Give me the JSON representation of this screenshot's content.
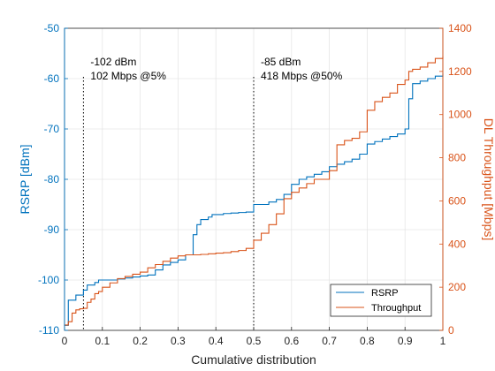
{
  "chart_data": {
    "type": "line",
    "xlabel": "Cumulative distribution",
    "ylabel_left": "RSRP [dBm]",
    "ylabel_right": "DL Throughput [Mbps]",
    "xlim": [
      0,
      1
    ],
    "ylim_left": [
      -110,
      -50
    ],
    "ylim_right": [
      0,
      1400
    ],
    "xticks": [
      "0",
      "0.1",
      "0.2",
      "0.3",
      "0.4",
      "0.5",
      "0.6",
      "0.7",
      "0.8",
      "0.9",
      "1"
    ],
    "yticks_left": [
      "-110",
      "-100",
      "-90",
      "-80",
      "-70",
      "-60",
      "-50"
    ],
    "yticks_right": [
      "0",
      "200",
      "400",
      "600",
      "800",
      "1000",
      "1200",
      "1400"
    ],
    "grid": true,
    "legend_position": "bottom-right",
    "colors": {
      "rsrp": "#0072BD",
      "throughput": "#D95319",
      "left_axis": "#0072BD",
      "right_axis": "#D95319"
    },
    "series": [
      {
        "name": "RSRP",
        "axis": "left",
        "x": [
          0.0,
          0.01,
          0.02,
          0.03,
          0.04,
          0.05,
          0.06,
          0.07,
          0.08,
          0.09,
          0.1,
          0.12,
          0.14,
          0.16,
          0.18,
          0.2,
          0.22,
          0.24,
          0.26,
          0.28,
          0.3,
          0.32,
          0.34,
          0.35,
          0.36,
          0.37,
          0.38,
          0.39,
          0.4,
          0.42,
          0.44,
          0.46,
          0.48,
          0.5,
          0.52,
          0.54,
          0.56,
          0.58,
          0.6,
          0.62,
          0.64,
          0.66,
          0.68,
          0.7,
          0.72,
          0.74,
          0.76,
          0.78,
          0.8,
          0.82,
          0.84,
          0.86,
          0.88,
          0.9,
          0.91,
          0.92,
          0.94,
          0.96,
          0.98,
          1.0
        ],
        "y": [
          -109,
          -104,
          -104,
          -103,
          -103,
          -102,
          -101,
          -101,
          -100.5,
          -100,
          -100,
          -100,
          -99.8,
          -99.6,
          -99.4,
          -99.2,
          -99,
          -98,
          -97,
          -96.5,
          -96,
          -95,
          -91,
          -89,
          -88,
          -88,
          -87.5,
          -87,
          -87,
          -86.8,
          -86.7,
          -86.6,
          -86.5,
          -85,
          -85,
          -84.5,
          -84,
          -83,
          -81,
          -80,
          -79.5,
          -79,
          -78.5,
          -77.5,
          -77,
          -76.5,
          -76,
          -75,
          -73,
          -72.5,
          -72,
          -71.5,
          -71,
          -70,
          -64,
          -61,
          -60.5,
          -60,
          -59.5,
          -59
        ]
      },
      {
        "name": "Throughput",
        "axis": "right",
        "x": [
          0.0,
          0.01,
          0.02,
          0.03,
          0.04,
          0.05,
          0.06,
          0.07,
          0.08,
          0.09,
          0.1,
          0.12,
          0.14,
          0.16,
          0.18,
          0.2,
          0.22,
          0.24,
          0.26,
          0.28,
          0.3,
          0.32,
          0.34,
          0.36,
          0.38,
          0.4,
          0.42,
          0.44,
          0.46,
          0.48,
          0.5,
          0.52,
          0.54,
          0.56,
          0.58,
          0.6,
          0.62,
          0.64,
          0.66,
          0.68,
          0.7,
          0.72,
          0.74,
          0.76,
          0.78,
          0.8,
          0.82,
          0.84,
          0.86,
          0.88,
          0.9,
          0.91,
          0.92,
          0.94,
          0.96,
          0.98,
          1.0
        ],
        "y": [
          25,
          40,
          80,
          95,
          100,
          102,
          130,
          145,
          170,
          180,
          200,
          220,
          240,
          250,
          260,
          270,
          290,
          305,
          320,
          335,
          345,
          350,
          350,
          352,
          355,
          358,
          360,
          365,
          370,
          380,
          418,
          450,
          490,
          540,
          610,
          640,
          660,
          680,
          700,
          700,
          740,
          860,
          880,
          890,
          920,
          1020,
          1060,
          1080,
          1100,
          1140,
          1160,
          1200,
          1210,
          1220,
          1240,
          1260,
          1270
        ]
      }
    ],
    "annotations": [
      {
        "x": 0.05,
        "line1": "-102 dBm",
        "line2": "102 Mbps @5%"
      },
      {
        "x": 0.5,
        "line1": "-85 dBm",
        "line2": "418 Mbps @50%"
      }
    ]
  }
}
